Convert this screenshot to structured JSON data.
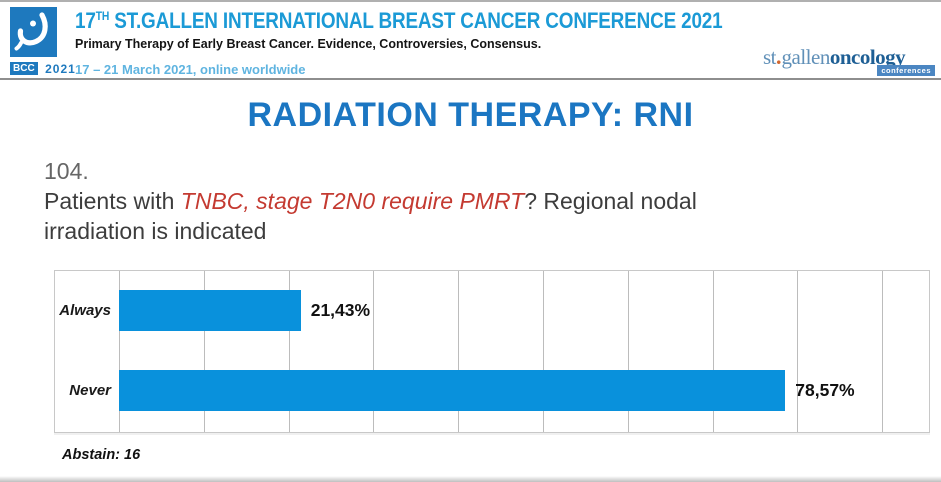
{
  "header": {
    "logo": {
      "badge": "BCC",
      "year": "2021"
    },
    "title_num": "17",
    "title_sup": "TH",
    "title_rest": " ST.GALLEN INTERNATIONAL BREAST CANCER CONFERENCE 2021",
    "subtitle": "Primary Therapy of Early Breast Cancer. Evidence, Controversies, Consensus.",
    "dates": "17 – 21 March 2021, online worldwide",
    "brand": {
      "part1": "st",
      "dot": ".",
      "part2": "gallen",
      "part3": "oncology",
      "sub": "conferences"
    }
  },
  "slide": {
    "title": "RADIATION THERAPY: RNI",
    "question_number": "104.",
    "question": {
      "pre": "Patients with ",
      "highlight": "TNBC, stage T2N0 require PMRT",
      "post": "? Regional nodal",
      "line2": "irradiation is indicated"
    }
  },
  "chart_data": {
    "type": "bar",
    "orientation": "horizontal",
    "title": "",
    "categories": [
      "Always",
      "Never"
    ],
    "values": [
      21.43,
      78.57
    ],
    "value_labels": [
      "21,43%",
      "78,57%"
    ],
    "xlabel": "",
    "ylabel": "",
    "xlim": [
      0,
      95
    ],
    "gridline_step_percent": 10,
    "grid": true,
    "bar_color": "#0991DC",
    "abstain_note": "Abstain: 16"
  },
  "colors": {
    "accent_title": "#1B76C2",
    "header_blue": "#1B9AD6",
    "dates_blue": "#5FB4E0",
    "highlight_red": "#C43A31",
    "bar_blue": "#0991DC",
    "logo_blue": "#1E79BE"
  }
}
